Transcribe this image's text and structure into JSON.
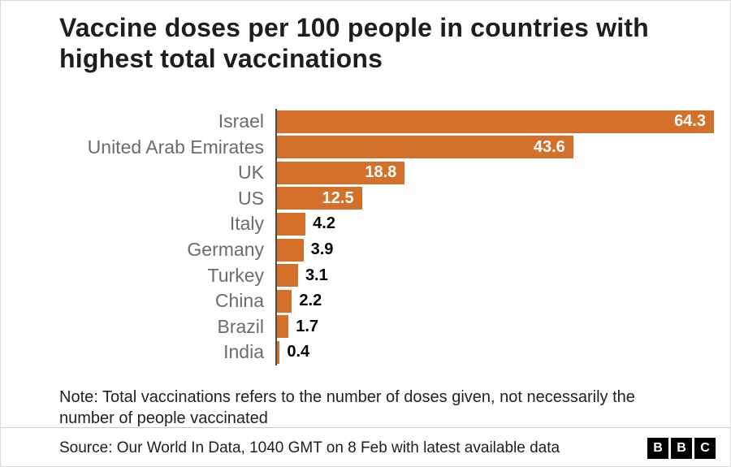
{
  "chart_data": {
    "type": "bar",
    "orientation": "horizontal",
    "title": "Vaccine doses per 100 people in countries with highest total vaccinations",
    "categories": [
      "Israel",
      "United Arab Emirates",
      "UK",
      "US",
      "Italy",
      "Germany",
      "Turkey",
      "China",
      "Brazil",
      "India"
    ],
    "values": [
      64.3,
      43.6,
      18.8,
      12.5,
      4.2,
      3.9,
      3.1,
      2.2,
      1.7,
      0.4
    ],
    "xlabel": "",
    "ylabel": "",
    "xlim": [
      0,
      64.3
    ],
    "grid": false,
    "legend": false,
    "value_label_inside_threshold": 10
  },
  "colors": {
    "bar": "#d5702b",
    "axis_line": "#4a4a4a",
    "label": "#6b6b6b",
    "divider": "#cccccc",
    "logo_bg": "#000000"
  },
  "note": {
    "text": "Note: Total vaccinations refers to the number of doses given, not necessarily the number of people vaccinated"
  },
  "footer": {
    "source": "Source: Our World In Data, 1040 GMT on 8 Feb with latest available data",
    "logo_letters": [
      "B",
      "B",
      "C"
    ]
  }
}
